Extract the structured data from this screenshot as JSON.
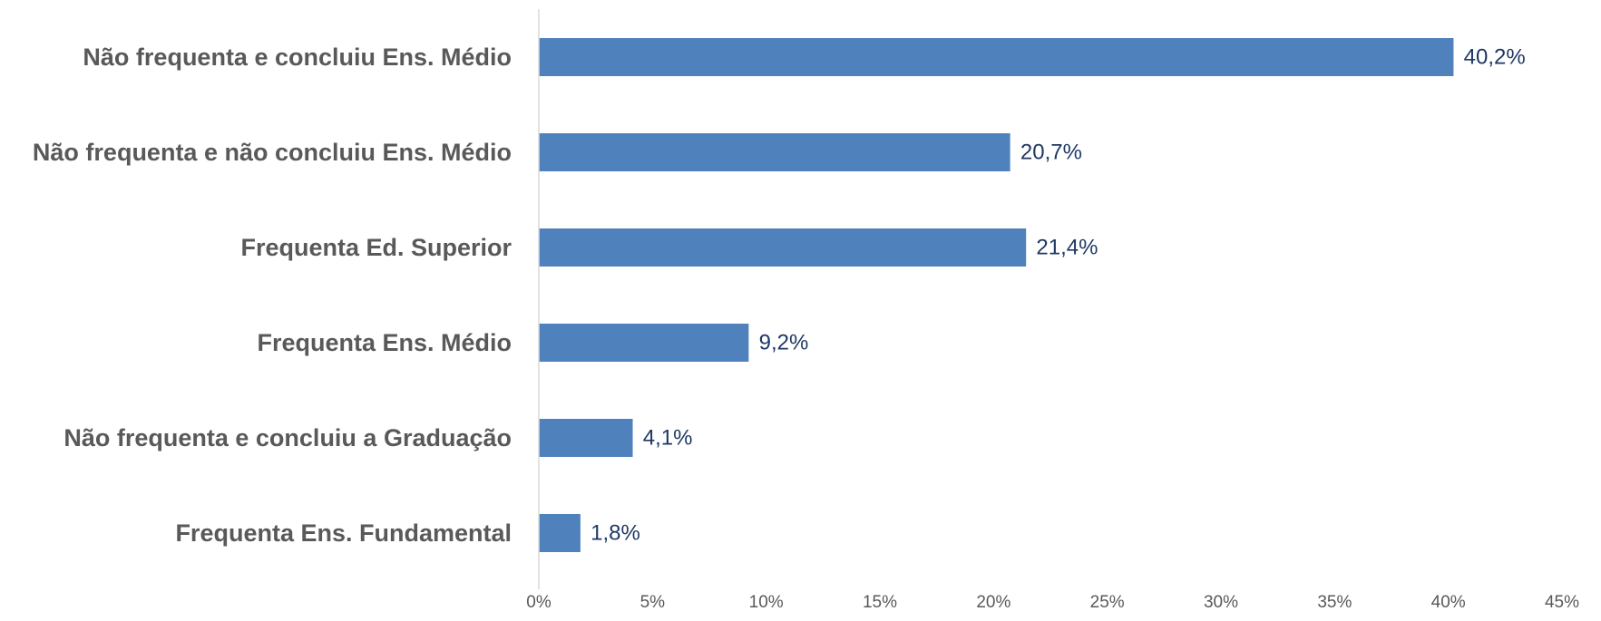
{
  "chart_data": {
    "type": "bar",
    "orientation": "horizontal",
    "title": "",
    "xlabel": "",
    "ylabel": "",
    "categories": [
      "Não frequenta e concluiu Ens. Médio",
      "Não frequenta e não concluiu Ens. Médio",
      "Frequenta Ed. Superior",
      "Frequenta Ens. Médio",
      "Não frequenta e concluiu a Graduação",
      "Frequenta Ens. Fundamental"
    ],
    "values": [
      40.2,
      20.7,
      21.4,
      9.2,
      4.1,
      1.8
    ],
    "data_labels": [
      "40,2%",
      "20,7%",
      "21,4%",
      "9,2%",
      "4,1%",
      "1,8%"
    ],
    "xlim": [
      0,
      45
    ],
    "x_ticks": [
      0,
      5,
      10,
      15,
      20,
      25,
      30,
      35,
      40,
      45
    ],
    "x_tick_labels": [
      "0%",
      "5%",
      "10%",
      "15%",
      "20%",
      "25%",
      "30%",
      "35%",
      "40%",
      "45%"
    ],
    "grid": false,
    "legend": "none",
    "colors": {
      "bar": "#4f81bd",
      "axis": "#d9d9d9",
      "category_text": "#595959",
      "data_label_text": "#1f3864",
      "tick_text": "#595959"
    }
  }
}
